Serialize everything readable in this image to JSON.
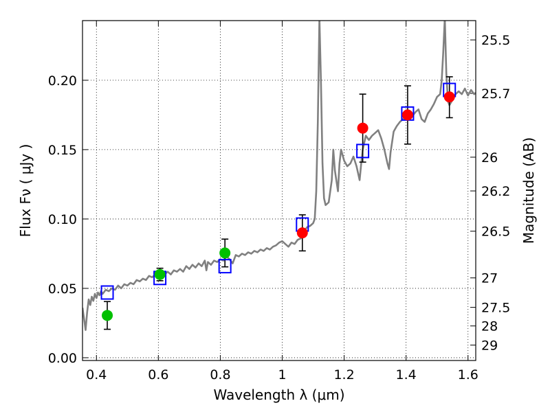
{
  "chart_data": {
    "type": "scatter",
    "xlabel": "Wavelength  λ (μm)",
    "ylabel_left": "Flux  Fν  ( μJy )",
    "ylabel_right": "Magnitude (AB)",
    "xlim": [
      0.355,
      1.625
    ],
    "ylim": [
      -0.002,
      0.243
    ],
    "grid": true,
    "x_ticks": [
      {
        "value": 0.4,
        "label": "0.4"
      },
      {
        "value": 0.6,
        "label": "0.6"
      },
      {
        "value": 0.8,
        "label": "0.8"
      },
      {
        "value": 1.0,
        "label": "1"
      },
      {
        "value": 1.2,
        "label": "1.2"
      },
      {
        "value": 1.4,
        "label": "1.4"
      },
      {
        "value": 1.6,
        "label": "1.6"
      }
    ],
    "y_ticks": [
      {
        "value": 0.0,
        "label": "0.00"
      },
      {
        "value": 0.05,
        "label": "0.05"
      },
      {
        "value": 0.1,
        "label": "0.10"
      },
      {
        "value": 0.15,
        "label": "0.15"
      },
      {
        "value": 0.2,
        "label": "0.20"
      }
    ],
    "mag_ticks": [
      {
        "mag": 25.5,
        "label": "25.5"
      },
      {
        "mag": 25.7,
        "label": "25.7"
      },
      {
        "mag": 26.0,
        "label": "26"
      },
      {
        "mag": 26.2,
        "label": "26.2"
      },
      {
        "mag": 26.5,
        "label": "26.5"
      },
      {
        "mag": 27.0,
        "label": "27"
      },
      {
        "mag": 27.5,
        "label": "27.5"
      },
      {
        "mag": 28.0,
        "label": "28"
      },
      {
        "mag": 29.0,
        "label": "29"
      }
    ],
    "series": [
      {
        "kind": "line",
        "color": "#808080",
        "points": [
          [
            0.355,
            0.036
          ],
          [
            0.36,
            0.028
          ],
          [
            0.365,
            0.02
          ],
          [
            0.37,
            0.033
          ],
          [
            0.375,
            0.042
          ],
          [
            0.38,
            0.038
          ],
          [
            0.385,
            0.044
          ],
          [
            0.39,
            0.041
          ],
          [
            0.395,
            0.046
          ],
          [
            0.4,
            0.043
          ],
          [
            0.405,
            0.047
          ],
          [
            0.41,
            0.045
          ],
          [
            0.415,
            0.048
          ],
          [
            0.42,
            0.046
          ],
          [
            0.43,
            0.049
          ],
          [
            0.44,
            0.048
          ],
          [
            0.45,
            0.05
          ],
          [
            0.46,
            0.049
          ],
          [
            0.47,
            0.052
          ],
          [
            0.48,
            0.05
          ],
          [
            0.49,
            0.053
          ],
          [
            0.5,
            0.052
          ],
          [
            0.51,
            0.054
          ],
          [
            0.52,
            0.053
          ],
          [
            0.53,
            0.056
          ],
          [
            0.54,
            0.055
          ],
          [
            0.55,
            0.057
          ],
          [
            0.56,
            0.056
          ],
          [
            0.57,
            0.059
          ],
          [
            0.58,
            0.058
          ],
          [
            0.59,
            0.06
          ],
          [
            0.6,
            0.059
          ],
          [
            0.61,
            0.061
          ],
          [
            0.62,
            0.06
          ],
          [
            0.63,
            0.062
          ],
          [
            0.64,
            0.06
          ],
          [
            0.65,
            0.063
          ],
          [
            0.66,
            0.062
          ],
          [
            0.67,
            0.064
          ],
          [
            0.68,
            0.062
          ],
          [
            0.69,
            0.066
          ],
          [
            0.7,
            0.064
          ],
          [
            0.71,
            0.067
          ],
          [
            0.72,
            0.065
          ],
          [
            0.73,
            0.068
          ],
          [
            0.74,
            0.066
          ],
          [
            0.75,
            0.07
          ],
          [
            0.755,
            0.063
          ],
          [
            0.76,
            0.069
          ],
          [
            0.77,
            0.067
          ],
          [
            0.78,
            0.07
          ],
          [
            0.79,
            0.069
          ],
          [
            0.8,
            0.071
          ],
          [
            0.81,
            0.07
          ],
          [
            0.82,
            0.073
          ],
          [
            0.83,
            0.071
          ],
          [
            0.84,
            0.068
          ],
          [
            0.85,
            0.074
          ],
          [
            0.86,
            0.073
          ],
          [
            0.87,
            0.075
          ],
          [
            0.88,
            0.074
          ],
          [
            0.89,
            0.076
          ],
          [
            0.9,
            0.075
          ],
          [
            0.91,
            0.077
          ],
          [
            0.92,
            0.076
          ],
          [
            0.93,
            0.078
          ],
          [
            0.94,
            0.077
          ],
          [
            0.95,
            0.079
          ],
          [
            0.96,
            0.078
          ],
          [
            0.97,
            0.08
          ],
          [
            0.98,
            0.081
          ],
          [
            0.99,
            0.083
          ],
          [
            1.0,
            0.084
          ],
          [
            1.01,
            0.082
          ],
          [
            1.02,
            0.08
          ],
          [
            1.03,
            0.083
          ],
          [
            1.04,
            0.082
          ],
          [
            1.05,
            0.085
          ],
          [
            1.06,
            0.086
          ],
          [
            1.07,
            0.091
          ],
          [
            1.08,
            0.094
          ],
          [
            1.09,
            0.095
          ],
          [
            1.1,
            0.097
          ],
          [
            1.105,
            0.1
          ],
          [
            1.11,
            0.12
          ],
          [
            1.115,
            0.17
          ],
          [
            1.12,
            0.245
          ],
          [
            1.125,
            0.2
          ],
          [
            1.13,
            0.14
          ],
          [
            1.135,
            0.115
          ],
          [
            1.14,
            0.11
          ],
          [
            1.15,
            0.112
          ],
          [
            1.16,
            0.128
          ],
          [
            1.165,
            0.15
          ],
          [
            1.17,
            0.135
          ],
          [
            1.18,
            0.12
          ],
          [
            1.185,
            0.14
          ],
          [
            1.19,
            0.15
          ],
          [
            1.2,
            0.142
          ],
          [
            1.21,
            0.138
          ],
          [
            1.22,
            0.14
          ],
          [
            1.23,
            0.145
          ],
          [
            1.24,
            0.138
          ],
          [
            1.25,
            0.128
          ],
          [
            1.255,
            0.14
          ],
          [
            1.26,
            0.15
          ],
          [
            1.27,
            0.16
          ],
          [
            1.28,
            0.157
          ],
          [
            1.29,
            0.16
          ],
          [
            1.3,
            0.162
          ],
          [
            1.31,
            0.164
          ],
          [
            1.32,
            0.158
          ],
          [
            1.33,
            0.15
          ],
          [
            1.34,
            0.14
          ],
          [
            1.345,
            0.136
          ],
          [
            1.35,
            0.148
          ],
          [
            1.36,
            0.163
          ],
          [
            1.37,
            0.167
          ],
          [
            1.38,
            0.17
          ],
          [
            1.39,
            0.172
          ],
          [
            1.4,
            0.175
          ],
          [
            1.41,
            0.176
          ],
          [
            1.42,
            0.174
          ],
          [
            1.43,
            0.177
          ],
          [
            1.44,
            0.179
          ],
          [
            1.45,
            0.172
          ],
          [
            1.46,
            0.17
          ],
          [
            1.47,
            0.176
          ],
          [
            1.48,
            0.179
          ],
          [
            1.49,
            0.183
          ],
          [
            1.5,
            0.188
          ],
          [
            1.51,
            0.19
          ],
          [
            1.515,
            0.2
          ],
          [
            1.52,
            0.22
          ],
          [
            1.525,
            0.245
          ],
          [
            1.53,
            0.205
          ],
          [
            1.535,
            0.185
          ],
          [
            1.54,
            0.182
          ],
          [
            1.55,
            0.186
          ],
          [
            1.56,
            0.19
          ],
          [
            1.57,
            0.192
          ],
          [
            1.58,
            0.19
          ],
          [
            1.59,
            0.194
          ],
          [
            1.6,
            0.189
          ],
          [
            1.61,
            0.193
          ],
          [
            1.62,
            0.19
          ],
          [
            1.625,
            0.191
          ]
        ]
      },
      {
        "kind": "open-square",
        "color": "#0000ff",
        "points": [
          [
            0.435,
            0.047
          ],
          [
            0.605,
            0.0575
          ],
          [
            0.815,
            0.066
          ],
          [
            1.065,
            0.096
          ],
          [
            1.26,
            0.149
          ],
          [
            1.405,
            0.176
          ],
          [
            1.54,
            0.193
          ]
        ]
      },
      {
        "kind": "circle",
        "color": "#00c000",
        "points": [
          [
            0.435,
            0.0305
          ],
          [
            0.605,
            0.06
          ],
          [
            0.815,
            0.0755
          ]
        ]
      },
      {
        "kind": "circle",
        "color": "#ff0000",
        "points": [
          [
            1.065,
            0.09
          ],
          [
            1.26,
            0.1655
          ],
          [
            1.405,
            0.175
          ],
          [
            1.54,
            0.188
          ]
        ]
      }
    ],
    "error_bars": [
      {
        "x": 0.435,
        "y_low": 0.0205,
        "y_high": 0.0405
      },
      {
        "x": 0.605,
        "y_low": 0.0555,
        "y_high": 0.0645
      },
      {
        "x": 0.815,
        "y_low": 0.0655,
        "y_high": 0.0855
      },
      {
        "x": 1.065,
        "y_low": 0.077,
        "y_high": 0.103
      },
      {
        "x": 1.26,
        "y_low": 0.141,
        "y_high": 0.19
      },
      {
        "x": 1.405,
        "y_low": 0.154,
        "y_high": 0.196
      },
      {
        "x": 1.54,
        "y_low": 0.173,
        "y_high": 0.2025
      }
    ]
  }
}
